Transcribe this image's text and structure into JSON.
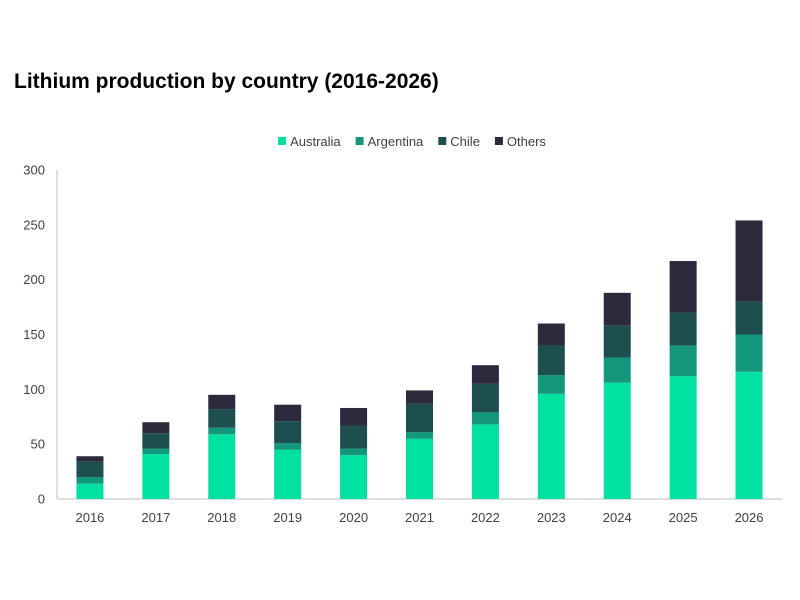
{
  "chart_data": {
    "type": "bar",
    "stacked": true,
    "title": "Lithium production by country (2016-2026)",
    "xlabel": "",
    "ylabel": "",
    "categories": [
      "2016",
      "2017",
      "2018",
      "2019",
      "2020",
      "2021",
      "2022",
      "2023",
      "2024",
      "2025",
      "2026"
    ],
    "series": [
      {
        "name": "Australia",
        "color": "#00E0A0",
        "values": [
          14,
          41,
          59,
          45,
          40,
          55,
          68,
          96,
          106,
          112,
          116
        ]
      },
      {
        "name": "Argentina",
        "color": "#12967C",
        "values": [
          6,
          5,
          6,
          6,
          6,
          6,
          11,
          17,
          23,
          28,
          34
        ]
      },
      {
        "name": "Chile",
        "color": "#1E4F4F",
        "values": [
          14,
          14,
          17,
          20,
          21,
          26,
          26,
          27,
          29,
          30,
          30
        ]
      },
      {
        "name": "Others",
        "color": "#2A2A3C",
        "values": [
          5,
          10,
          13,
          15,
          16,
          12,
          17,
          20,
          30,
          47,
          74
        ]
      }
    ],
    "ylim": [
      0,
      300
    ],
    "yticks": [
      0,
      50,
      100,
      150,
      200,
      250,
      300
    ],
    "legend_position": "top-center",
    "grid": false
  }
}
